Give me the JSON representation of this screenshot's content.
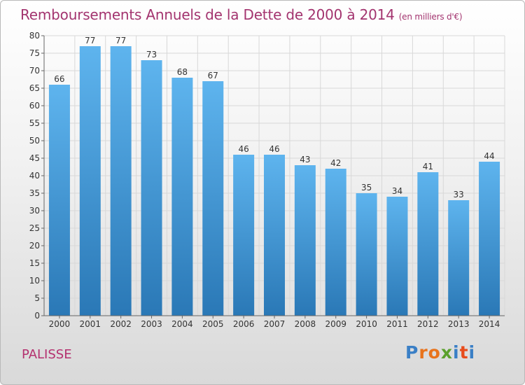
{
  "title": {
    "main": "Remboursements Annuels de la Dette de 2000 à 2014",
    "unit": "(en milliers d'€)"
  },
  "commune": "PALISSE",
  "logo": {
    "text": "Proxiti",
    "letter_colors": [
      "#3a7fc6",
      "#e8731c",
      "#e8731c",
      "#5aa02c",
      "#3a7fc6",
      "#e84c1c",
      "#3a7fc6"
    ]
  },
  "colors": {
    "bar_top": "#5eb4ee",
    "bar_bottom": "#2a78b6",
    "title": "#a3346f",
    "grid": "#d8d8d8"
  },
  "chart_data": {
    "type": "bar",
    "title": "Remboursements Annuels de la Dette de 2000 à 2014",
    "subtitle": "(en milliers d'€)",
    "categories": [
      "2000",
      "2001",
      "2002",
      "2003",
      "2004",
      "2005",
      "2006",
      "2007",
      "2008",
      "2009",
      "2010",
      "2011",
      "2012",
      "2013",
      "2014"
    ],
    "values": [
      66,
      77,
      77,
      73,
      68,
      67,
      46,
      46,
      43,
      42,
      35,
      34,
      41,
      33,
      44
    ],
    "ylim": [
      0,
      80
    ],
    "ytick_step": 5,
    "grid": true,
    "xlabel": "",
    "ylabel": ""
  }
}
